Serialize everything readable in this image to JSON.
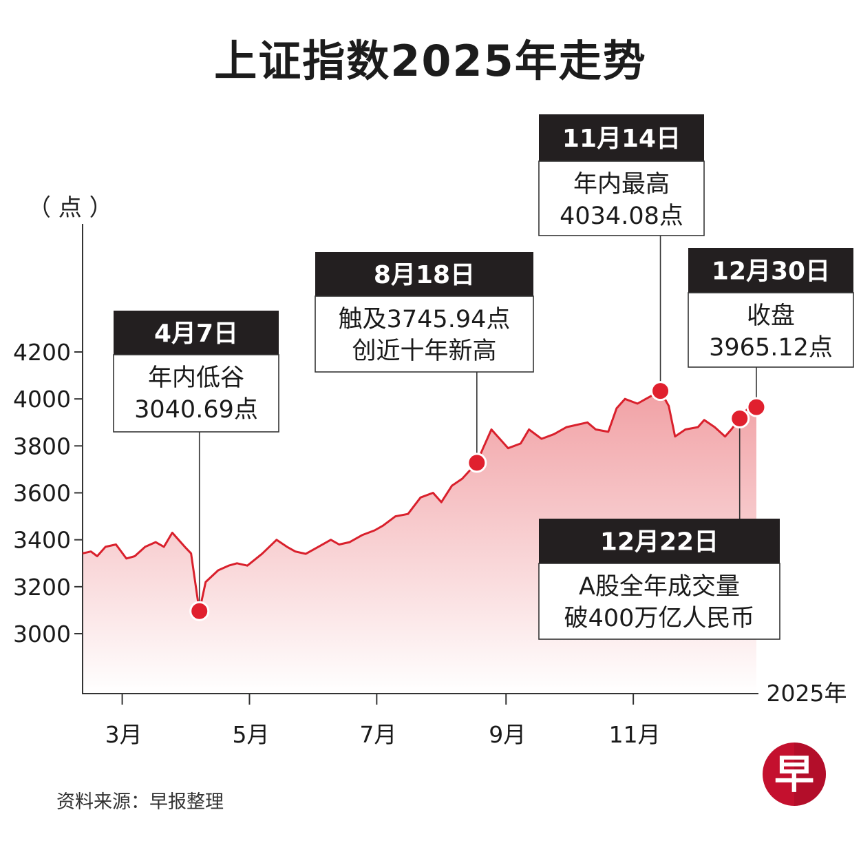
{
  "title": "上证指数2025年走势",
  "unit_label": "（ 点 ）",
  "source": "资料来源：早报整理",
  "logo_text": "早",
  "colors": {
    "line": "#d9202c",
    "marker": "#e0202e",
    "annotation_header": "#231f20",
    "area_top": "#f1a1a5"
  },
  "chart_data": {
    "type": "area",
    "title": "上证指数2025年走势",
    "ylabel": "（ 点 ）",
    "xlabel": "2025年",
    "ylim": [
      2750,
      4200
    ],
    "yticks": [
      3000,
      3200,
      3400,
      3600,
      3800,
      4000,
      4200
    ],
    "xticks": [
      {
        "label": "3月",
        "date": "2025-03-01"
      },
      {
        "label": "5月",
        "date": "2025-05-01"
      },
      {
        "label": "7月",
        "date": "2025-07-01"
      },
      {
        "label": "9月",
        "date": "2025-09-01"
      },
      {
        "label": "11月",
        "date": "2025-11-01"
      }
    ],
    "xlim": [
      "2025-02-10",
      "2025-12-31"
    ],
    "series": [
      {
        "points": [
          [
            "2025-02-10",
            3342
          ],
          [
            "2025-02-14",
            3350
          ],
          [
            "2025-02-17",
            3330
          ],
          [
            "2025-02-21",
            3370
          ],
          [
            "2025-02-26",
            3380
          ],
          [
            "2025-03-03",
            3320
          ],
          [
            "2025-03-07",
            3330
          ],
          [
            "2025-03-12",
            3370
          ],
          [
            "2025-03-17",
            3390
          ],
          [
            "2025-03-21",
            3370
          ],
          [
            "2025-03-25",
            3430
          ],
          [
            "2025-03-31",
            3370
          ],
          [
            "2025-04-03",
            3342
          ],
          [
            "2025-04-07",
            3096
          ],
          [
            "2025-04-10",
            3220
          ],
          [
            "2025-04-16",
            3270
          ],
          [
            "2025-04-21",
            3290
          ],
          [
            "2025-04-25",
            3300
          ],
          [
            "2025-04-30",
            3290
          ],
          [
            "2025-05-07",
            3340
          ],
          [
            "2025-05-14",
            3400
          ],
          [
            "2025-05-19",
            3370
          ],
          [
            "2025-05-23",
            3350
          ],
          [
            "2025-05-28",
            3340
          ],
          [
            "2025-06-03",
            3370
          ],
          [
            "2025-06-09",
            3400
          ],
          [
            "2025-06-13",
            3380
          ],
          [
            "2025-06-18",
            3390
          ],
          [
            "2025-06-24",
            3420
          ],
          [
            "2025-06-30",
            3440
          ],
          [
            "2025-07-04",
            3460
          ],
          [
            "2025-07-10",
            3500
          ],
          [
            "2025-07-16",
            3510
          ],
          [
            "2025-07-22",
            3580
          ],
          [
            "2025-07-28",
            3600
          ],
          [
            "2025-08-01",
            3560
          ],
          [
            "2025-08-06",
            3630
          ],
          [
            "2025-08-11",
            3660
          ],
          [
            "2025-08-18",
            3728
          ],
          [
            "2025-08-21",
            3790
          ],
          [
            "2025-08-25",
            3870
          ],
          [
            "2025-08-28",
            3840
          ],
          [
            "2025-09-02",
            3790
          ],
          [
            "2025-09-08",
            3810
          ],
          [
            "2025-09-12",
            3870
          ],
          [
            "2025-09-18",
            3830
          ],
          [
            "2025-09-24",
            3850
          ],
          [
            "2025-09-30",
            3880
          ],
          [
            "2025-10-10",
            3900
          ],
          [
            "2025-10-14",
            3870
          ],
          [
            "2025-10-20",
            3860
          ],
          [
            "2025-10-24",
            3960
          ],
          [
            "2025-10-28",
            4000
          ],
          [
            "2025-11-03",
            3980
          ],
          [
            "2025-11-07",
            4000
          ],
          [
            "2025-11-14",
            4034
          ],
          [
            "2025-11-18",
            3970
          ],
          [
            "2025-11-21",
            3840
          ],
          [
            "2025-11-26",
            3870
          ],
          [
            "2025-12-02",
            3880
          ],
          [
            "2025-12-05",
            3910
          ],
          [
            "2025-12-10",
            3880
          ],
          [
            "2025-12-15",
            3840
          ],
          [
            "2025-12-18",
            3870
          ],
          [
            "2025-12-22",
            3917
          ],
          [
            "2025-12-26",
            3960
          ],
          [
            "2025-12-30",
            3965
          ]
        ]
      }
    ],
    "annotations": [
      {
        "date": "4月7日",
        "x": "2025-04-07",
        "y": 3096,
        "lines": [
          "年内低谷",
          "3040.69点"
        ]
      },
      {
        "date": "8月18日",
        "x": "2025-08-18",
        "y": 3728,
        "lines": [
          "触及3745.94点",
          "创近十年新高"
        ]
      },
      {
        "date": "11月14日",
        "x": "2025-11-14",
        "y": 4034,
        "lines": [
          "年内最高",
          "4034.08点"
        ]
      },
      {
        "date": "12月30日",
        "x": "2025-12-30",
        "y": 3965,
        "lines": [
          "收盘",
          "3965.12点"
        ]
      },
      {
        "date": "12月22日",
        "x": "2025-12-22",
        "y": 3917,
        "lines": [
          "A股全年成交量",
          "破400万亿人民币"
        ]
      }
    ]
  }
}
